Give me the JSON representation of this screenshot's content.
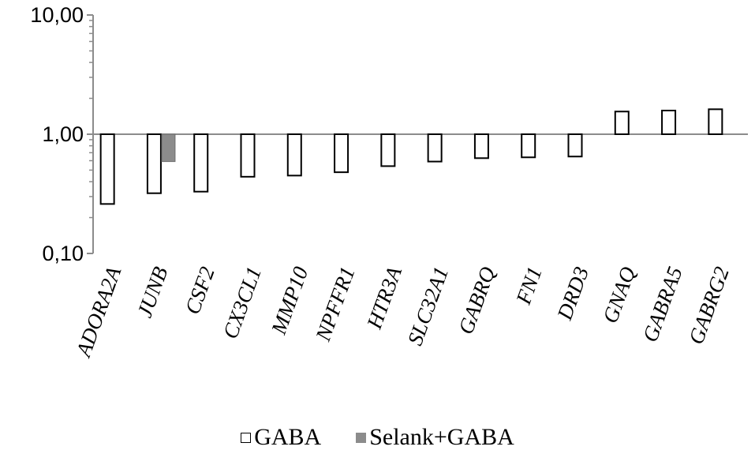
{
  "chart_data": {
    "type": "bar",
    "yscale": "log",
    "ylim": [
      0.1,
      10
    ],
    "yticks": [
      "0,10",
      "1,00",
      "10,00"
    ],
    "categories": [
      "ADORA2A",
      "JUNB",
      "CSF2",
      "CX3CL1",
      "MMP10",
      "NPFFR1",
      "HTR3A",
      "SLC32A1",
      "GABRQ",
      "FN1",
      "DRD3",
      "GNAQ",
      "GABRA5",
      "GABRG2"
    ],
    "series": [
      {
        "name": "GABA",
        "color": "#ffffff",
        "values": [
          0.26,
          0.32,
          0.33,
          0.44,
          0.45,
          0.48,
          0.54,
          0.59,
          0.63,
          0.64,
          0.65,
          1.55,
          1.58,
          1.62
        ]
      },
      {
        "name": "Selank+GABA",
        "color": "#8c8c8c",
        "values": [
          null,
          0.59,
          null,
          null,
          null,
          null,
          null,
          null,
          null,
          null,
          null,
          null,
          null,
          null
        ]
      }
    ],
    "grid": false,
    "legend": "bottom"
  }
}
